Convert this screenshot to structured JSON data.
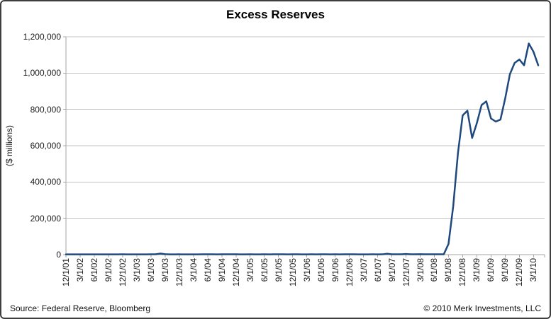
{
  "chart_data": {
    "type": "line",
    "title": "Excess Reserves",
    "ylabel": "($ millions)",
    "ylim": [
      0,
      1200000
    ],
    "grid": "horizontal",
    "legend": "none",
    "y_tick_values": [
      0,
      200000,
      400000,
      600000,
      800000,
      1000000,
      1200000
    ],
    "y_tick_labels": [
      "0",
      "200,000",
      "400,000",
      "600,000",
      "800,000",
      "1,000,000",
      "1,200,000"
    ],
    "x_tick_labels": [
      "12/1/01",
      "3/1/02",
      "6/1/02",
      "9/1/02",
      "12/1/02",
      "3/1/03",
      "6/1/03",
      "9/1/03",
      "12/1/03",
      "3/1/04",
      "6/1/04",
      "9/1/04",
      "12/1/04",
      "3/1/05",
      "6/1/05",
      "9/1/05",
      "12/1/05",
      "3/1/06",
      "6/1/06",
      "9/1/06",
      "12/1/06",
      "3/1/07",
      "6/1/07",
      "9/1/07",
      "12/1/07",
      "3/1/08",
      "6/1/08",
      "9/1/08",
      "12/1/08",
      "3/1/09",
      "6/1/09",
      "9/1/09",
      "12/1/09",
      "3/1/10"
    ],
    "x_start": "12/1/01",
    "x_end": "4/1/10",
    "frequency": "monthly",
    "series": [
      {
        "name": "Excess Reserves ($ millions)",
        "values": [
          1500,
          1400,
          1300,
          1500,
          1400,
          1300,
          1500,
          1400,
          1600,
          1500,
          1400,
          1500,
          1800,
          1600,
          1400,
          1600,
          1500,
          1600,
          1700,
          1800,
          6000,
          2500,
          1600,
          1500,
          1700,
          1600,
          1500,
          1600,
          1600,
          1700,
          1900,
          1700,
          1600,
          1700,
          1800,
          1900,
          1800,
          1600,
          1500,
          1700,
          1600,
          1500,
          1700,
          1600,
          1700,
          1900,
          1700,
          1600,
          1800,
          1700,
          1500,
          1600,
          1700,
          1600,
          1800,
          1700,
          1600,
          1700,
          1600,
          1700,
          1900,
          1700,
          1600,
          1500,
          1600,
          1700,
          1600,
          1700,
          5000,
          2000,
          1800,
          1900,
          3500,
          1800,
          1700,
          2300,
          1900,
          2000,
          2000,
          1900,
          1900,
          59000,
          267000,
          559000,
          767000,
          793000,
          643000,
          724000,
          824000,
          844000,
          750000,
          733000,
          744000,
          860000,
          994000,
          1056000,
          1075000,
          1043000,
          1163000,
          1117000,
          1043000
        ]
      }
    ]
  },
  "footer": {
    "source": "Source: Federal Reserve, Bloomberg",
    "copyright": "© 2010 Merk Investments, LLC"
  },
  "colors": {
    "line": "#1F497D",
    "gridline": "#C3C3C3",
    "axis": "#A6A6A6",
    "text": "#1a1a1a",
    "border": "#3f3f3f",
    "background": "#FFFFFF"
  }
}
